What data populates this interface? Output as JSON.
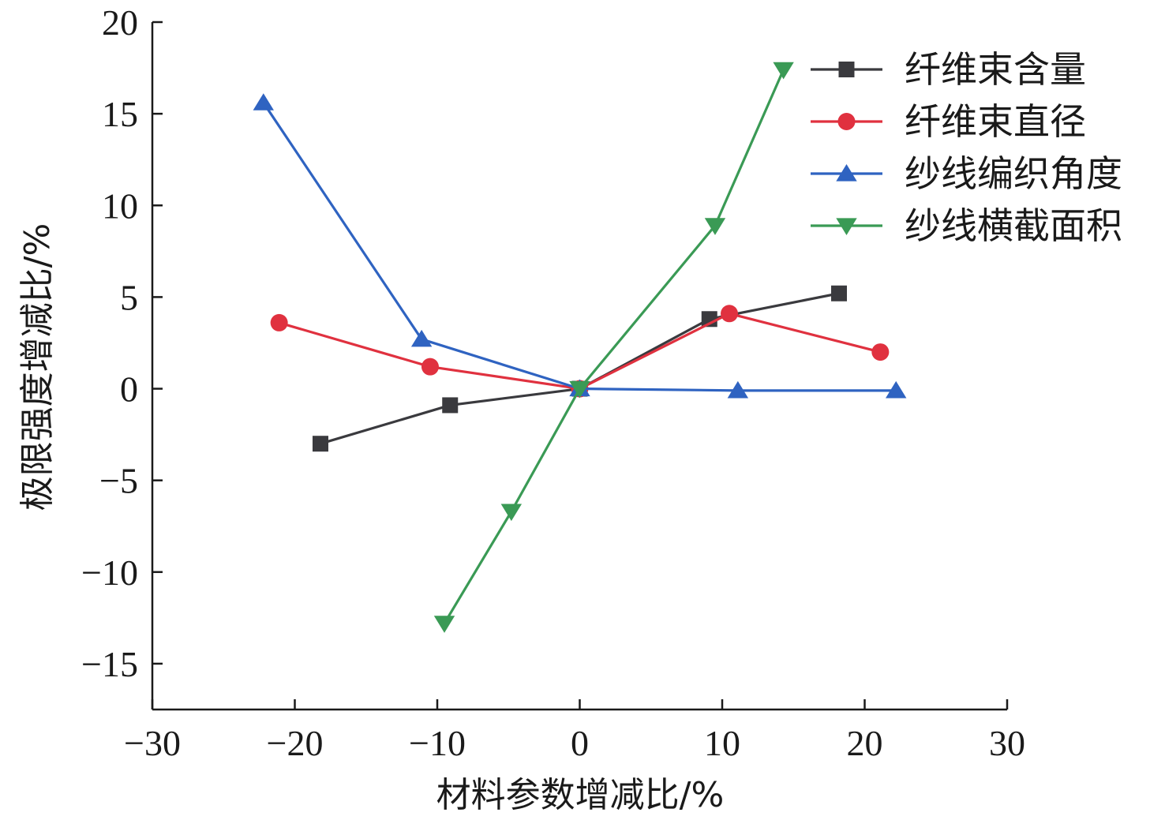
{
  "chart_data": {
    "type": "line",
    "title": "",
    "xlabel": "材料参数增减比/%",
    "ylabel": "极限强度增减比/%",
    "xlim": [
      -30,
      30
    ],
    "ylim": [
      -17.5,
      20
    ],
    "xticks": [
      -30,
      -20,
      -10,
      0,
      10,
      20,
      30
    ],
    "yticks": [
      -15,
      -10,
      -5,
      0,
      5,
      10,
      15,
      20
    ],
    "xtick_labels": [
      "−30",
      "−20",
      "−10",
      "0",
      "10",
      "20",
      "30"
    ],
    "ytick_labels": [
      "−15",
      "−10",
      "−5",
      "0",
      "5",
      "10",
      "15",
      "20"
    ],
    "grid": false,
    "legend_position": "top-right",
    "series": [
      {
        "name": "纤维束含量",
        "color": "#3a3a3e",
        "marker": "square",
        "x": [
          -18.2,
          -9.1,
          0,
          9.1,
          18.2
        ],
        "y": [
          -3.0,
          -0.9,
          0,
          3.8,
          5.2
        ]
      },
      {
        "name": "纤维束直径",
        "color": "#e0313f",
        "marker": "circle",
        "x": [
          -21.1,
          -10.5,
          0,
          10.5,
          21.1
        ],
        "y": [
          3.6,
          1.2,
          0,
          4.1,
          2.0
        ]
      },
      {
        "name": "纱线编织角度",
        "color": "#2f63c1",
        "marker": "triangle-up",
        "x": [
          -22.2,
          -11.1,
          0,
          11.1,
          22.2
        ],
        "y": [
          15.6,
          2.7,
          0,
          -0.1,
          -0.1
        ]
      },
      {
        "name": "纱线横截面积",
        "color": "#3a9a55",
        "marker": "triangle-down",
        "x": [
          -9.5,
          -4.8,
          0,
          9.5,
          14.3
        ],
        "y": [
          -12.8,
          -6.7,
          0,
          8.9,
          17.4
        ]
      }
    ]
  }
}
